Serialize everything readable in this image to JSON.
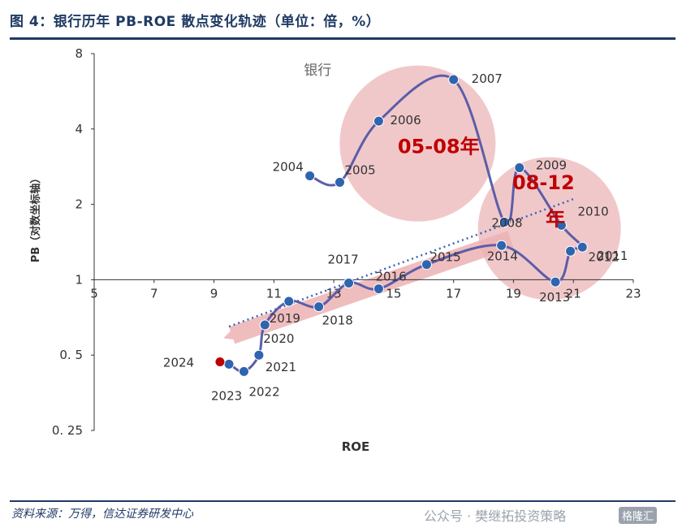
{
  "header": {
    "title": "图 4：银行历年 PB-ROE 散点变化轨迹（单位：倍，%）"
  },
  "footer": {
    "source": "资料来源：万得，信达证券研发中心",
    "watermark": "公众号 · 樊继拓投资策略",
    "badge": "格隆汇"
  },
  "chart_data": {
    "type": "scatter",
    "subtitle": "银行",
    "xlabel": "ROE",
    "ylabel": "PB（对数坐标轴）",
    "xlim": [
      5,
      23
    ],
    "ylim": [
      0.25,
      8
    ],
    "yscale": "log2",
    "xticks": [
      "5",
      "7",
      "9",
      "11",
      "13",
      "15",
      "17",
      "19",
      "21",
      "23"
    ],
    "yticks": [
      "8",
      "4",
      "2",
      "1",
      "0. 5",
      "0. 25"
    ],
    "series": [
      {
        "points": [
          {
            "x": 12.2,
            "y": 2.6,
            "label": "2004"
          },
          {
            "x": 13.2,
            "y": 2.45,
            "label": "2005"
          },
          {
            "x": 14.5,
            "y": 4.3,
            "label": "2006"
          },
          {
            "x": 17.0,
            "y": 6.3,
            "label": "2007"
          },
          {
            "x": 18.7,
            "y": 1.7,
            "label": "2008"
          },
          {
            "x": 19.2,
            "y": 2.8,
            "label": "2009"
          },
          {
            "x": 20.6,
            "y": 1.65,
            "label": "2010"
          },
          {
            "x": 21.3,
            "y": 1.35,
            "label": "2011"
          },
          {
            "x": 20.9,
            "y": 1.3,
            "label": "2012"
          },
          {
            "x": 20.4,
            "y": 0.98,
            "label": "2013"
          },
          {
            "x": 18.6,
            "y": 1.37,
            "label": "2014"
          },
          {
            "x": 16.1,
            "y": 1.15,
            "label": "2015"
          },
          {
            "x": 14.5,
            "y": 0.92,
            "label": "2016"
          },
          {
            "x": 13.5,
            "y": 0.97,
            "label": "2017"
          },
          {
            "x": 12.5,
            "y": 0.78,
            "label": "2018"
          },
          {
            "x": 11.5,
            "y": 0.82,
            "label": "2019"
          },
          {
            "x": 10.7,
            "y": 0.66,
            "label": "2020"
          },
          {
            "x": 10.5,
            "y": 0.5,
            "label": "2021"
          },
          {
            "x": 10.0,
            "y": 0.43,
            "label": "2022"
          },
          {
            "x": 9.5,
            "y": 0.46,
            "label": "2023"
          },
          {
            "x": 9.2,
            "y": 0.47,
            "label": "2024"
          }
        ]
      }
    ],
    "trendline": {
      "from": [
        9.5,
        0.65
      ],
      "to": [
        21.0,
        2.1
      ]
    },
    "annotations": [
      {
        "text": "05-08年",
        "x": 16.5,
        "y": 3.2
      },
      {
        "text": "08-12",
        "x": 20.0,
        "y": 2.3
      },
      {
        "text": "年",
        "x": 20.4,
        "y": 1.65
      }
    ],
    "colors": {
      "line": "#5a5ea8",
      "marker": "#2f64ae",
      "latest": "#c00000",
      "highlight": "#e8a3a6",
      "annotation": "#c00000",
      "trend": "#3c64b4"
    }
  }
}
